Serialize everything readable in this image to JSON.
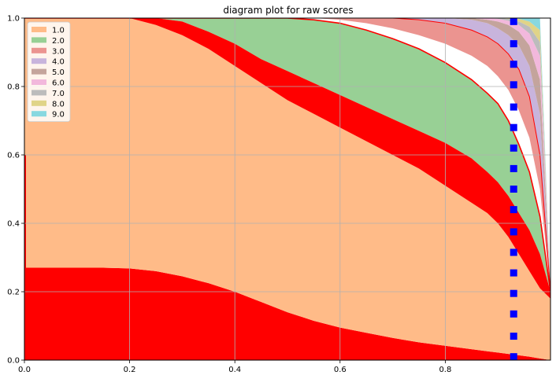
{
  "chart_data": {
    "type": "area",
    "title": "diagram plot for raw scores",
    "xlabel": "",
    "ylabel": "",
    "xlim": [
      0,
      1
    ],
    "ylim": [
      0,
      1
    ],
    "x_ticks": [
      "0.0",
      "0.2",
      "0.4",
      "0.6",
      "0.8"
    ],
    "x_tick_values": [
      0,
      0.2,
      0.4,
      0.6,
      0.8
    ],
    "y_ticks": [
      "0.0",
      "0.2",
      "0.4",
      "0.6",
      "0.8",
      "1.0"
    ],
    "y_tick_values": [
      0,
      0.2,
      0.4,
      0.6,
      0.8,
      1.0
    ],
    "grid": true,
    "legend_position": "upper-left",
    "x": [
      0.0,
      0.005,
      0.05,
      0.1,
      0.15,
      0.2,
      0.25,
      0.3,
      0.35,
      0.4,
      0.45,
      0.5,
      0.55,
      0.6,
      0.65,
      0.7,
      0.75,
      0.8,
      0.85,
      0.88,
      0.9,
      0.92,
      0.94,
      0.96,
      0.98,
      1.0
    ],
    "series": [
      {
        "name": "1.0",
        "color": "#ffbb88",
        "lower": [
          0.27,
          0.27,
          0.27,
          0.27,
          0.27,
          0.268,
          0.26,
          0.245,
          0.225,
          0.2,
          0.17,
          0.14,
          0.115,
          0.095,
          0.08,
          0.065,
          0.052,
          0.042,
          0.032,
          0.026,
          0.022,
          0.018,
          0.014,
          0.01,
          0.005,
          0.0
        ],
        "upper": [
          1.0,
          1.0,
          1.0,
          1.0,
          1.0,
          1.0,
          0.98,
          0.95,
          0.91,
          0.86,
          0.81,
          0.76,
          0.72,
          0.68,
          0.64,
          0.6,
          0.56,
          0.51,
          0.46,
          0.43,
          0.4,
          0.36,
          0.31,
          0.26,
          0.21,
          0.18
        ]
      },
      {
        "name": "2.0",
        "color": "#98d095",
        "lower": [
          1.0,
          1.0,
          1.0,
          1.0,
          1.0,
          1.0,
          1.0,
          0.99,
          0.96,
          0.925,
          0.88,
          0.845,
          0.81,
          0.775,
          0.74,
          0.705,
          0.67,
          0.635,
          0.59,
          0.55,
          0.52,
          0.48,
          0.43,
          0.38,
          0.31,
          0.2
        ],
        "upper": [
          1.0,
          1.0,
          1.0,
          1.0,
          1.0,
          1.0,
          1.0,
          1.0,
          1.0,
          1.0,
          1.0,
          1.0,
          0.995,
          0.985,
          0.965,
          0.94,
          0.91,
          0.87,
          0.82,
          0.78,
          0.75,
          0.7,
          0.63,
          0.55,
          0.42,
          0.2
        ]
      },
      {
        "name": "3.0",
        "color": "#eb9490",
        "lower": [
          1.0,
          1.0,
          1.0,
          1.0,
          1.0,
          1.0,
          1.0,
          1.0,
          1.0,
          1.0,
          1.0,
          1.0,
          1.0,
          0.995,
          0.985,
          0.97,
          0.95,
          0.925,
          0.89,
          0.86,
          0.83,
          0.79,
          0.73,
          0.65,
          0.5,
          0.2
        ],
        "upper": [
          1.0,
          1.0,
          1.0,
          1.0,
          1.0,
          1.0,
          1.0,
          1.0,
          1.0,
          1.0,
          1.0,
          1.0,
          1.0,
          1.0,
          1.0,
          1.0,
          0.995,
          0.985,
          0.965,
          0.945,
          0.925,
          0.895,
          0.85,
          0.77,
          0.6,
          0.2
        ]
      },
      {
        "name": "4.0",
        "color": "#c8b4dc",
        "lower": [
          1.0,
          1.0,
          1.0,
          1.0,
          1.0,
          1.0,
          1.0,
          1.0,
          1.0,
          1.0,
          1.0,
          1.0,
          1.0,
          1.0,
          1.0,
          1.0,
          0.995,
          0.985,
          0.965,
          0.945,
          0.925,
          0.895,
          0.85,
          0.77,
          0.6,
          0.2
        ],
        "upper": [
          1.0,
          1.0,
          1.0,
          1.0,
          1.0,
          1.0,
          1.0,
          1.0,
          1.0,
          1.0,
          1.0,
          1.0,
          1.0,
          1.0,
          1.0,
          1.0,
          1.0,
          1.0,
          0.995,
          0.985,
          0.97,
          0.95,
          0.92,
          0.86,
          0.72,
          0.2
        ]
      },
      {
        "name": "5.0",
        "color": "#c4a49c",
        "lower": [
          1.0,
          1.0,
          1.0,
          1.0,
          1.0,
          1.0,
          1.0,
          1.0,
          1.0,
          1.0,
          1.0,
          1.0,
          1.0,
          1.0,
          1.0,
          1.0,
          1.0,
          1.0,
          0.995,
          0.985,
          0.97,
          0.95,
          0.92,
          0.86,
          0.72,
          0.2
        ],
        "upper": [
          1.0,
          1.0,
          1.0,
          1.0,
          1.0,
          1.0,
          1.0,
          1.0,
          1.0,
          1.0,
          1.0,
          1.0,
          1.0,
          1.0,
          1.0,
          1.0,
          1.0,
          1.0,
          1.0,
          0.995,
          0.99,
          0.98,
          0.96,
          0.92,
          0.82,
          0.2
        ]
      },
      {
        "name": "6.0",
        "color": "#f2b8dc",
        "lower": [
          1.0,
          1.0,
          1.0,
          1.0,
          1.0,
          1.0,
          1.0,
          1.0,
          1.0,
          1.0,
          1.0,
          1.0,
          1.0,
          1.0,
          1.0,
          1.0,
          1.0,
          1.0,
          1.0,
          0.995,
          0.99,
          0.98,
          0.96,
          0.92,
          0.82,
          0.2
        ],
        "upper": [
          1.0,
          1.0,
          1.0,
          1.0,
          1.0,
          1.0,
          1.0,
          1.0,
          1.0,
          1.0,
          1.0,
          1.0,
          1.0,
          1.0,
          1.0,
          1.0,
          1.0,
          1.0,
          1.0,
          1.0,
          0.998,
          0.992,
          0.98,
          0.955,
          0.89,
          0.2
        ]
      },
      {
        "name": "7.0",
        "color": "#bcbcbc",
        "lower": [
          1.0,
          1.0,
          1.0,
          1.0,
          1.0,
          1.0,
          1.0,
          1.0,
          1.0,
          1.0,
          1.0,
          1.0,
          1.0,
          1.0,
          1.0,
          1.0,
          1.0,
          1.0,
          1.0,
          1.0,
          0.998,
          0.992,
          0.98,
          0.955,
          0.89,
          0.2
        ],
        "upper": [
          1.0,
          1.0,
          1.0,
          1.0,
          1.0,
          1.0,
          1.0,
          1.0,
          1.0,
          1.0,
          1.0,
          1.0,
          1.0,
          1.0,
          1.0,
          1.0,
          1.0,
          1.0,
          1.0,
          1.0,
          1.0,
          0.998,
          0.99,
          0.975,
          0.93,
          0.2
        ]
      },
      {
        "name": "8.0",
        "color": "#e0d488",
        "lower": [
          1.0,
          1.0,
          1.0,
          1.0,
          1.0,
          1.0,
          1.0,
          1.0,
          1.0,
          1.0,
          1.0,
          1.0,
          1.0,
          1.0,
          1.0,
          1.0,
          1.0,
          1.0,
          1.0,
          1.0,
          1.0,
          0.998,
          0.99,
          0.975,
          0.93,
          0.2
        ],
        "upper": [
          1.0,
          1.0,
          1.0,
          1.0,
          1.0,
          1.0,
          1.0,
          1.0,
          1.0,
          1.0,
          1.0,
          1.0,
          1.0,
          1.0,
          1.0,
          1.0,
          1.0,
          1.0,
          1.0,
          1.0,
          1.0,
          1.0,
          0.998,
          0.99,
          0.965,
          0.2
        ]
      },
      {
        "name": "9.0",
        "color": "#88d8e0",
        "lower": [
          1.0,
          1.0,
          1.0,
          1.0,
          1.0,
          1.0,
          1.0,
          1.0,
          1.0,
          1.0,
          1.0,
          1.0,
          1.0,
          1.0,
          1.0,
          1.0,
          1.0,
          1.0,
          1.0,
          1.0,
          1.0,
          1.0,
          0.998,
          0.99,
          0.965,
          0.2
        ],
        "upper": [
          1.0,
          1.0,
          1.0,
          1.0,
          1.0,
          1.0,
          1.0,
          1.0,
          1.0,
          1.0,
          1.0,
          1.0,
          1.0,
          1.0,
          1.0,
          1.0,
          1.0,
          1.0,
          1.0,
          1.0,
          1.0,
          1.0,
          1.0,
          1.0,
          1.0,
          0.2
        ]
      }
    ],
    "red_separators": {
      "color": "#ff0000",
      "bottom_region_upper": [
        0.27,
        0.27,
        0.27,
        0.27,
        0.27,
        0.268,
        0.26,
        0.245,
        0.225,
        0.2,
        0.17,
        0.14,
        0.115,
        0.095,
        0.08,
        0.065,
        0.052,
        0.042,
        0.032,
        0.026,
        0.022,
        0.018,
        0.014,
        0.01,
        0.005,
        0.0
      ],
      "band_1_2_lower": [
        1.0,
        1.0,
        1.0,
        1.0,
        1.0,
        1.0,
        0.98,
        0.95,
        0.91,
        0.86,
        0.81,
        0.76,
        0.72,
        0.68,
        0.64,
        0.6,
        0.56,
        0.51,
        0.46,
        0.43,
        0.4,
        0.36,
        0.31,
        0.26,
        0.21,
        0.18
      ],
      "band_1_2_upper": [
        1.0,
        1.0,
        1.0,
        1.0,
        1.0,
        1.0,
        1.0,
        0.99,
        0.96,
        0.925,
        0.88,
        0.845,
        0.81,
        0.775,
        0.74,
        0.705,
        0.67,
        0.635,
        0.59,
        0.55,
        0.52,
        0.48,
        0.43,
        0.38,
        0.31,
        0.2
      ],
      "left_edge_spike_y": [
        0.27,
        0.6
      ]
    },
    "markers": {
      "color": "#0000ff",
      "shape": "square",
      "x": 0.93,
      "y": [
        0.01,
        0.07,
        0.135,
        0.195,
        0.255,
        0.315,
        0.375,
        0.44,
        0.5,
        0.56,
        0.62,
        0.68,
        0.74,
        0.805,
        0.865,
        0.925,
        0.99
      ]
    }
  }
}
